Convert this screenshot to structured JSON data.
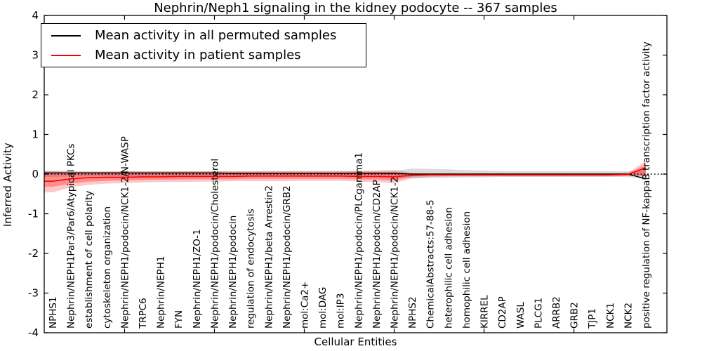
{
  "chart_data": {
    "type": "line",
    "title": "Nephrin/Neph1 signaling in the kidney podocyte -- 367 samples",
    "xlabel": "Cellular Entities",
    "ylabel": "Inferred Activity",
    "ylim": [
      -4,
      4
    ],
    "yticks": [
      "-4",
      "-3",
      "-2",
      "-1",
      "0",
      "1",
      "2",
      "3",
      "4"
    ],
    "ytick_values": [
      -4,
      -3,
      -2,
      -1,
      0,
      1,
      2,
      3,
      4
    ],
    "grid": false,
    "legend_position": "upper-left",
    "zero_line": {
      "value": 0,
      "style": "dotted",
      "color": "#000000"
    },
    "categories": [
      "NPHS1",
      "Nephrin/NEPH1Par3/Par6/Atypical PKCs",
      "establishment of cell polarity",
      "cytoskeleton organization",
      "Nephrin/NEPH1/podocin/NCK1-2/N-WASP",
      "TRPC6",
      "Nephrin/NEPH1",
      "FYN",
      "Nephrin/NEPH1/ZO-1",
      "Nephrin/NEPH1/podocin/Cholesterol",
      "Nephrin/NEPH1/podocin",
      "regulation of endocytosis",
      "Nephrin/NEPH1/beta Arrestin2",
      "Nephrin/NEPH1/podocin/GRB2",
      "mol:Ca2+",
      "mol:DAG",
      "mol:IP3",
      "Nephrin/NEPH1/podocin/PLCgamma1",
      "Nephrin/NEPH1/podocin/CD2AP",
      "Nephrin/NEPH1/podocin/NCK1-2",
      "NPHS2",
      "ChemicalAbstracts:57-88-5",
      "heterophilic cell adhesion",
      "homophilic cell adhesion",
      "KIRREL",
      "CD2AP",
      "WASL",
      "PLCG1",
      "ARRB2",
      "GRB2",
      "TJP1",
      "NCK1",
      "NCK2",
      "positive regulation of NF-kappaB transcription factor activity"
    ],
    "series": [
      {
        "name": "Mean activity in all permuted samples",
        "color": "#000000",
        "values": [
          0.03,
          0.03,
          0.03,
          0.03,
          0.03,
          0.03,
          0.03,
          0.03,
          0.03,
          0.03,
          0.02,
          0.02,
          0.02,
          0.02,
          0.02,
          0.02,
          0.02,
          0.02,
          0.02,
          0.02,
          0.0,
          0.0,
          0.0,
          0.0,
          0.0,
          0.0,
          0.0,
          0.0,
          0.0,
          0.0,
          0.0,
          0.0,
          0.0,
          -0.12
        ],
        "band_upper": [
          0.08,
          0.07,
          0.07,
          0.07,
          0.07,
          0.07,
          0.07,
          0.07,
          0.07,
          0.07,
          0.07,
          0.07,
          0.07,
          0.07,
          0.07,
          0.07,
          0.07,
          0.07,
          0.07,
          0.08,
          0.14,
          0.13,
          0.12,
          0.1,
          0.09,
          0.08,
          0.07,
          0.07,
          0.07,
          0.07,
          0.07,
          0.07,
          0.07,
          0.09
        ],
        "band_lower": [
          -0.07,
          -0.06,
          -0.06,
          -0.06,
          -0.06,
          -0.06,
          -0.06,
          -0.06,
          -0.06,
          -0.06,
          -0.06,
          -0.06,
          -0.06,
          -0.06,
          -0.06,
          -0.06,
          -0.06,
          -0.06,
          -0.07,
          -0.08,
          -0.11,
          -0.1,
          -0.09,
          -0.08,
          -0.08,
          -0.07,
          -0.07,
          -0.07,
          -0.07,
          -0.07,
          -0.07,
          -0.07,
          -0.07,
          -0.12
        ],
        "band_color": "#999999"
      },
      {
        "name": "Mean activity in patient samples",
        "color": "#ff0000",
        "values": [
          -0.18,
          -0.12,
          -0.09,
          -0.08,
          -0.08,
          -0.07,
          -0.07,
          -0.06,
          -0.06,
          -0.06,
          -0.06,
          -0.05,
          -0.05,
          -0.05,
          -0.05,
          -0.05,
          -0.05,
          -0.06,
          -0.06,
          -0.07,
          -0.03,
          -0.02,
          -0.02,
          -0.02,
          -0.02,
          -0.02,
          -0.02,
          -0.02,
          -0.02,
          -0.02,
          -0.02,
          -0.02,
          -0.01,
          0.16
        ],
        "band_upper": [
          0.08,
          0.06,
          0.06,
          0.06,
          0.07,
          0.07,
          0.07,
          0.07,
          0.07,
          0.07,
          0.07,
          0.07,
          0.08,
          0.08,
          0.08,
          0.08,
          0.08,
          0.09,
          0.09,
          0.1,
          0.03,
          0.02,
          0.02,
          0.02,
          0.02,
          0.02,
          0.02,
          0.02,
          0.02,
          0.02,
          0.02,
          0.02,
          0.03,
          0.33
        ],
        "band_lower": [
          -0.46,
          -0.33,
          -0.27,
          -0.24,
          -0.23,
          -0.21,
          -0.2,
          -0.2,
          -0.19,
          -0.19,
          -0.18,
          -0.18,
          -0.18,
          -0.18,
          -0.17,
          -0.17,
          -0.17,
          -0.19,
          -0.2,
          -0.23,
          -0.1,
          -0.07,
          -0.06,
          -0.06,
          -0.06,
          -0.06,
          -0.06,
          -0.06,
          -0.06,
          -0.06,
          -0.06,
          -0.06,
          -0.05,
          -0.06
        ],
        "band_inner_upper": [
          0.02,
          0.01,
          0.01,
          0.02,
          0.03,
          0.03,
          0.03,
          0.03,
          0.03,
          0.03,
          0.04,
          0.04,
          0.04,
          0.04,
          0.04,
          0.04,
          0.04,
          0.05,
          0.05,
          0.05,
          0.01,
          0.01,
          0.01,
          0.01,
          0.01,
          0.01,
          0.01,
          0.01,
          0.01,
          0.01,
          0.01,
          0.01,
          0.01,
          0.24
        ],
        "band_inner_lower": [
          -0.32,
          -0.24,
          -0.19,
          -0.17,
          -0.16,
          -0.15,
          -0.14,
          -0.14,
          -0.13,
          -0.13,
          -0.13,
          -0.12,
          -0.12,
          -0.12,
          -0.12,
          -0.12,
          -0.12,
          -0.13,
          -0.14,
          -0.16,
          -0.06,
          -0.04,
          -0.04,
          -0.04,
          -0.04,
          -0.04,
          -0.04,
          -0.04,
          -0.04,
          -0.04,
          -0.04,
          -0.04,
          -0.03,
          -0.03
        ],
        "band_color": "#ff0000"
      }
    ]
  }
}
